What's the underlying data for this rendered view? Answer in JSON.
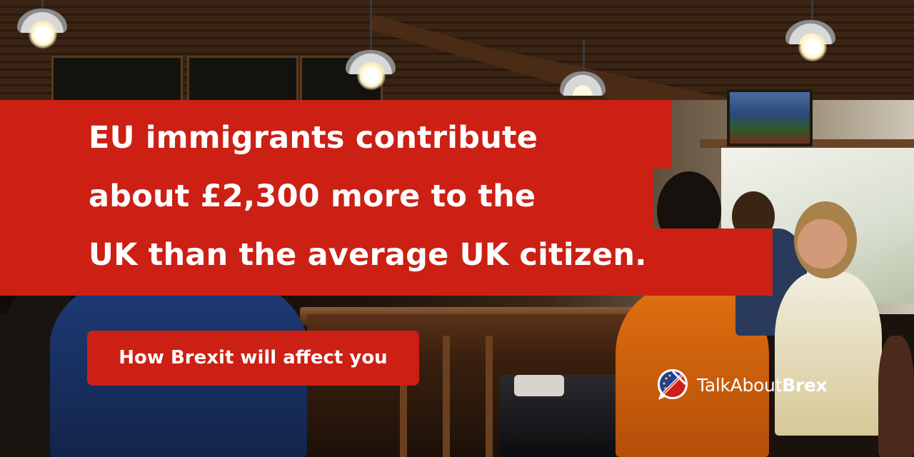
{
  "headline": {
    "lines": [
      "EU immigrants contribute",
      "about £2,300 more to the",
      "UK than the average UK citizen."
    ]
  },
  "cta": {
    "label": "How Brexit will affect you"
  },
  "brand": {
    "name_part1": "TalkAbout",
    "name_part2": "Brex",
    "logo_icon": "eu-union-jack-speech-bubble-icon"
  },
  "colors": {
    "accent_red": "#cc2014",
    "text": "#ffffff"
  }
}
